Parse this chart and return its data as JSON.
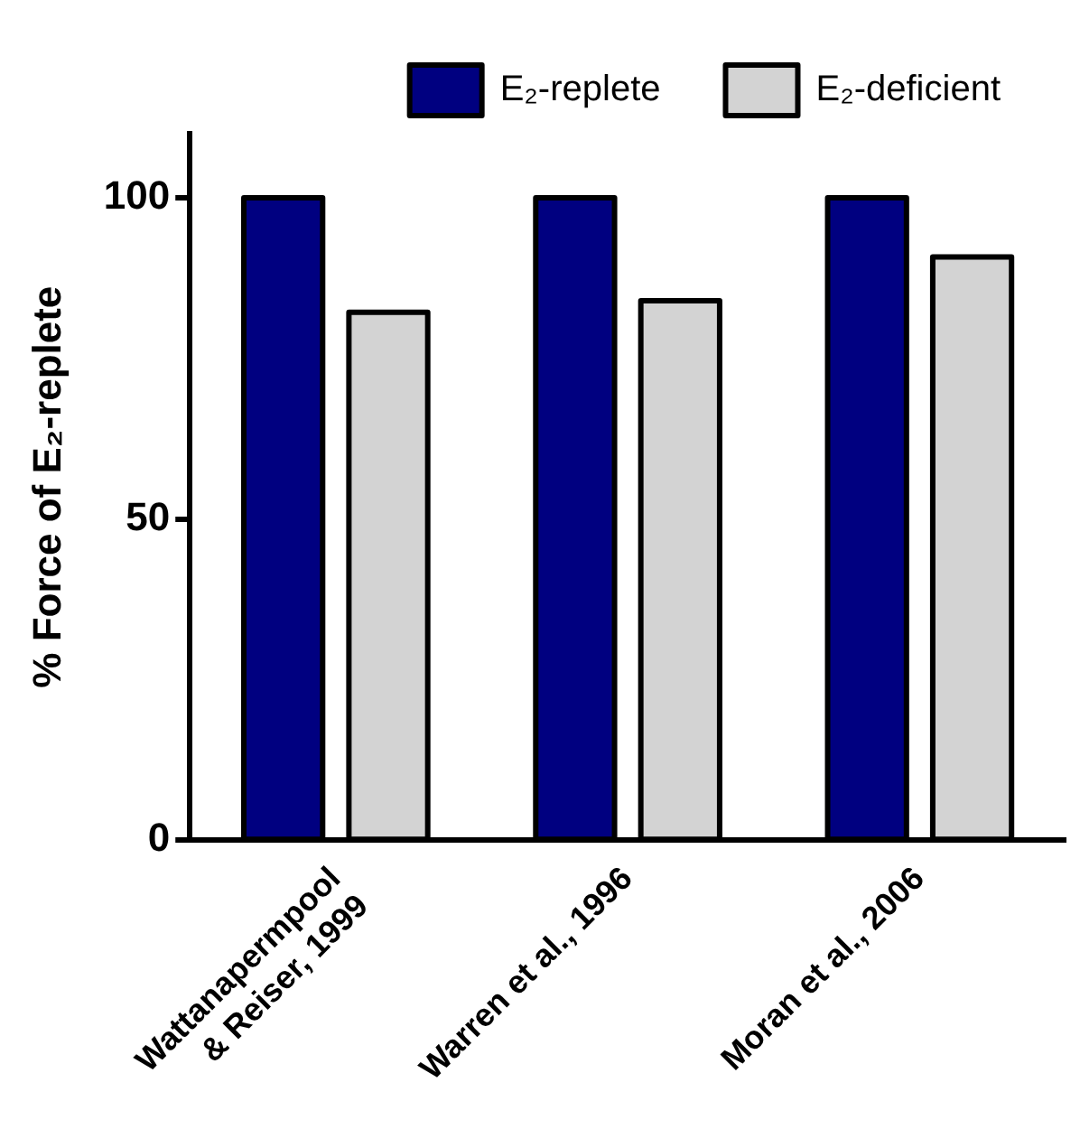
{
  "chart_data": {
    "type": "bar",
    "ylabel": "% Force of E₂-replete",
    "categories": [
      "Wattanapermpool\n& Reiser, 1999",
      "Warren et al., 1996",
      "Moran et al., 2006"
    ],
    "series": [
      {
        "name": "E₂-replete",
        "color": "#000080",
        "values": [
          100,
          100,
          100
        ]
      },
      {
        "name": "E₂-deficient",
        "color": "#d3d3d3",
        "values": [
          82.2,
          84,
          90.8
        ]
      }
    ],
    "ylim": [
      0,
      110
    ],
    "yticks": [
      0,
      50,
      100
    ],
    "grid": false,
    "legend": "top"
  }
}
